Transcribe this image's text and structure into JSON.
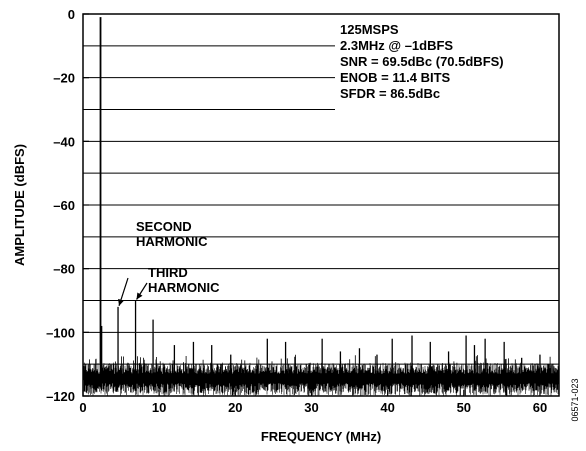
{
  "chart_data": {
    "type": "line",
    "title": "",
    "xlabel": "FREQUENCY (MHz)",
    "ylabel": "AMPLITUDE (dBFS)",
    "xlim": [
      0,
      62.5
    ],
    "ylim": [
      -120,
      0
    ],
    "x_ticks": [
      0,
      10,
      20,
      30,
      40,
      50,
      60
    ],
    "y_ticks": [
      0,
      -20,
      -40,
      -60,
      -80,
      -100,
      -120
    ],
    "grid": "horizontal",
    "noise_floor_dbfs": -113,
    "peaks": [
      {
        "x": 2.3,
        "y": -1
      },
      {
        "x": 2.45,
        "y": -98
      },
      {
        "x": 4.6,
        "y": -92
      },
      {
        "x": 6.9,
        "y": -90
      },
      {
        "x": 9.2,
        "y": -96
      },
      {
        "x": 12.0,
        "y": -104
      },
      {
        "x": 14.5,
        "y": -103
      },
      {
        "x": 16.9,
        "y": -104
      },
      {
        "x": 19.4,
        "y": -107
      },
      {
        "x": 24.2,
        "y": -102
      },
      {
        "x": 26.6,
        "y": -103
      },
      {
        "x": 31.4,
        "y": -102
      },
      {
        "x": 33.8,
        "y": -106
      },
      {
        "x": 36.3,
        "y": -105
      },
      {
        "x": 38.6,
        "y": -107
      },
      {
        "x": 40.6,
        "y": -102
      },
      {
        "x": 43.2,
        "y": -101
      },
      {
        "x": 45.6,
        "y": -103
      },
      {
        "x": 48.0,
        "y": -106
      },
      {
        "x": 50.3,
        "y": -101
      },
      {
        "x": 51.4,
        "y": -104
      },
      {
        "x": 52.8,
        "y": -102
      },
      {
        "x": 55.3,
        "y": -103
      },
      {
        "x": 57.6,
        "y": -108
      },
      {
        "x": 60.0,
        "y": -107
      }
    ],
    "info_lines": [
      "125MSPS",
      "2.3MHz @ –1dBFS",
      "SNR = 69.5dBc (70.5dBFS)",
      "ENOB = 11.4 BITS",
      "SFDR = 86.5dBc"
    ],
    "annotations": [
      {
        "lines": [
          "SECOND",
          "HARMONIC"
        ],
        "target_x": 4.6,
        "target_y": -92
      },
      {
        "lines": [
          "THIRD",
          "HARMONIC"
        ],
        "target_x": 6.9,
        "target_y": -90
      }
    ]
  },
  "figure_id": "06571-023"
}
